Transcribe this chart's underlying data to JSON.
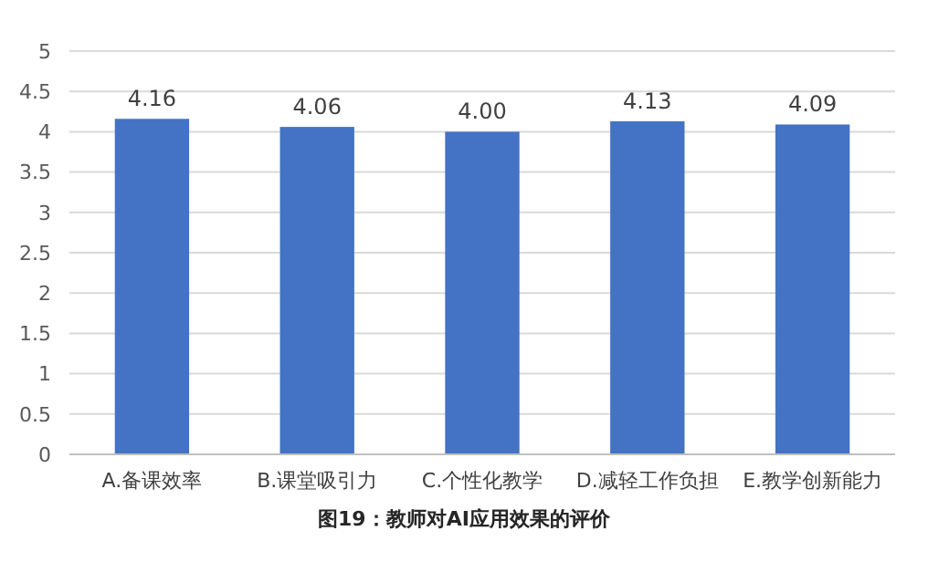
{
  "chart_data": {
    "type": "bar",
    "title": "图19：教师对AI应用效果的评价",
    "categories": [
      "A.备课效率",
      "B.课堂吸引力",
      "C.个性化教学",
      "D.减轻工作负担",
      "E.教学创新能力"
    ],
    "values": [
      4.16,
      4.06,
      4.0,
      4.13,
      4.09
    ],
    "value_labels": [
      "4.16",
      "4.06",
      "4.00",
      "4.13",
      "4.09"
    ],
    "color": "#4472c4",
    "ylim": [
      0,
      5
    ],
    "yticks": [
      0,
      0.5,
      1,
      1.5,
      2,
      2.5,
      3,
      3.5,
      4,
      4.5,
      5
    ],
    "grid": "y"
  }
}
